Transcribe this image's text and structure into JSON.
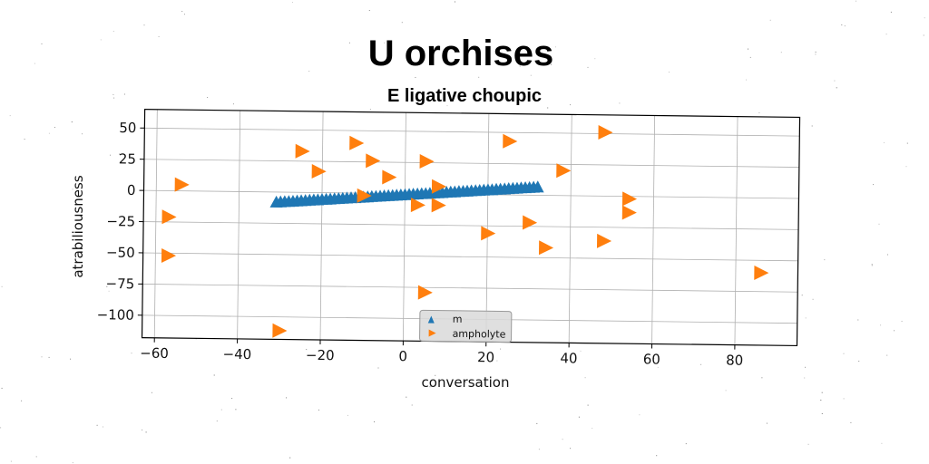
{
  "chart_data": {
    "type": "scatter",
    "title": "U orchises",
    "subtitle": "E ligative choupic",
    "xlabel": "conversation",
    "ylabel": "atrabiliousness",
    "xlim": [
      -63,
      95
    ],
    "ylim": [
      -118,
      65
    ],
    "xticks": [
      -60,
      -40,
      -20,
      0,
      20,
      40,
      60,
      80
    ],
    "yticks": [
      50,
      25,
      0,
      -25,
      -50,
      -75,
      -100
    ],
    "xtick_labels": [
      "−60",
      "−40",
      "−20",
      "0",
      "20",
      "40",
      "60",
      "80"
    ],
    "ytick_labels": [
      "50",
      "25",
      "0",
      "−25",
      "−50",
      "−75",
      "−100"
    ],
    "grid": true,
    "legend_position": "bottom-center",
    "series": [
      {
        "name": "m",
        "marker": "triangle-up",
        "color": "#1f77b4",
        "x": [
          -31,
          -30,
          -29,
          -28,
          -27,
          -26,
          -25,
          -24,
          -23,
          -22,
          -21,
          -20,
          -19,
          -18,
          -17,
          -16,
          -15,
          -14,
          -13,
          -12,
          -11,
          -10,
          -9,
          -8,
          -7,
          -6,
          -5,
          -4,
          -3,
          -2,
          -1,
          0,
          1,
          2,
          3,
          4,
          5,
          6,
          7,
          8,
          9,
          10,
          11,
          12,
          13,
          14,
          15,
          16,
          17,
          18,
          19,
          20,
          21,
          22,
          23,
          24,
          25,
          26,
          27,
          28,
          29,
          30,
          31,
          32
        ],
        "y": [
          -8.0,
          -7.8,
          -7.5,
          -7.3,
          -7.1,
          -6.8,
          -6.6,
          -6.4,
          -6.1,
          -5.9,
          -5.7,
          -5.4,
          -5.2,
          -5.0,
          -4.7,
          -4.5,
          -4.3,
          -4.0,
          -3.8,
          -3.6,
          -3.3,
          -3.1,
          -2.9,
          -2.6,
          -2.4,
          -2.2,
          -1.9,
          -1.7,
          -1.5,
          -1.2,
          -1.0,
          -0.8,
          -0.5,
          -0.3,
          -0.1,
          0.2,
          0.4,
          0.6,
          0.9,
          1.1,
          1.3,
          1.6,
          1.8,
          2.0,
          2.3,
          2.5,
          2.7,
          3.0,
          3.2,
          3.4,
          3.7,
          3.9,
          4.1,
          4.4,
          4.6,
          4.8,
          5.1,
          5.3,
          5.5,
          5.8,
          6.0,
          6.2,
          6.5,
          6.7
        ]
      },
      {
        "name": "ampholyte",
        "marker": "triangle-right",
        "color": "#ff7f0e",
        "x": [
          -54,
          -57,
          -57,
          -25,
          -21,
          -12,
          -8,
          -4,
          -10,
          5,
          8,
          3,
          8,
          25,
          38,
          48,
          54,
          54,
          48,
          30,
          20,
          34,
          5,
          -30,
          86
        ],
        "y": [
          5,
          -21,
          -52,
          33,
          17,
          40,
          26,
          13,
          -2,
          26,
          6,
          -9,
          -9,
          43,
          20,
          51,
          -2,
          -13,
          -36,
          -22,
          -31,
          -42,
          -79,
          -111,
          -60
        ]
      }
    ]
  }
}
